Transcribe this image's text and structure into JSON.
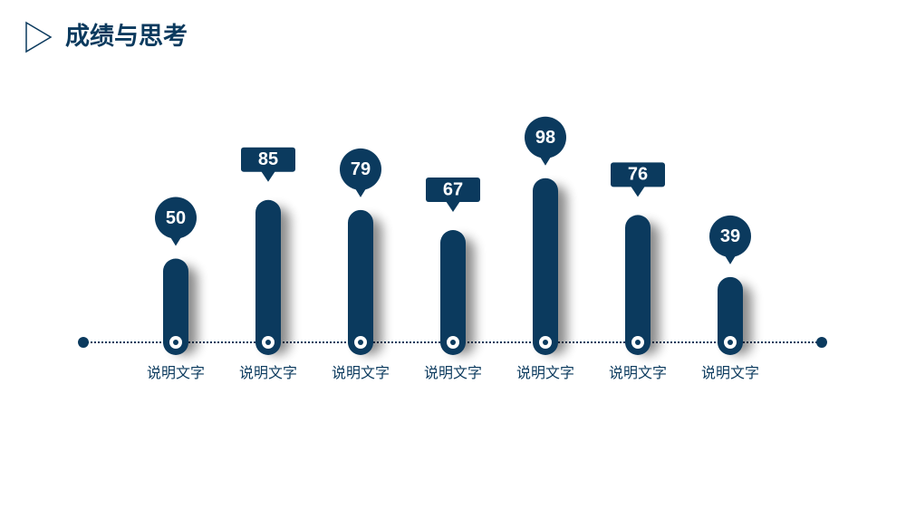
{
  "chart_data": {
    "type": "bar",
    "title": "成绩与思考",
    "categories": [
      "说明文字",
      "说明文字",
      "说明文字",
      "说明文字",
      "说明文字",
      "说明文字",
      "说明文字"
    ],
    "values": [
      50,
      85,
      79,
      67,
      98,
      76,
      39
    ],
    "color": "#0b3a5e"
  }
}
